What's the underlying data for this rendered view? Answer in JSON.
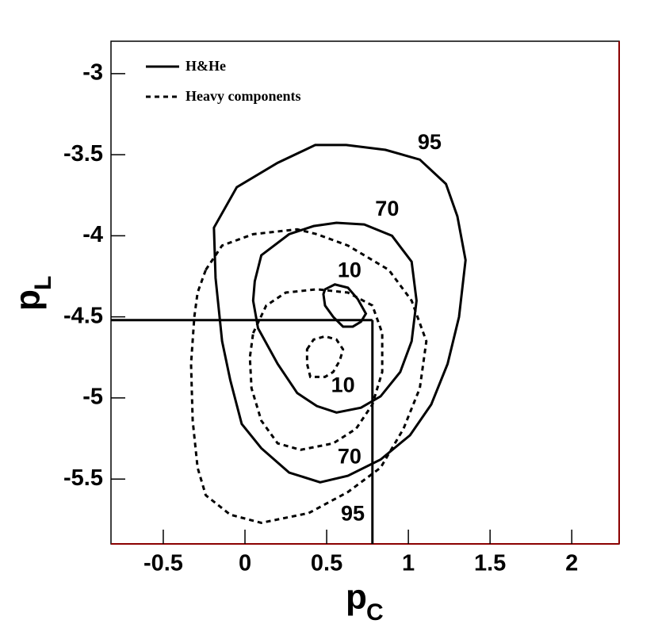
{
  "chart_data": {
    "type": "contour",
    "xlabel": {
      "text": "p",
      "sub": "C"
    },
    "ylabel": {
      "text": "p",
      "sub": "L"
    },
    "xlim": [
      -0.82,
      2.29
    ],
    "ylim": [
      -5.9,
      -2.8
    ],
    "xticks": [
      -0.5,
      0,
      0.5,
      1,
      1.5,
      2
    ],
    "yticks": [
      -3,
      -3.5,
      -4,
      -4.5,
      -5,
      -5.5
    ],
    "series": [
      {
        "name": "H&He",
        "dash": "solid",
        "color": "#000000",
        "lines": [
          {
            "x": [
              -0.19,
              -0.05,
              0.2,
              0.43,
              0.62,
              0.86,
              1.07,
              1.23,
              1.3,
              1.35,
              1.31,
              1.24,
              1.14,
              1.01,
              0.83,
              0.63,
              0.46,
              0.27,
              0.1,
              -0.02,
              -0.09,
              -0.14,
              -0.18
            ],
            "y": [
              -3.95,
              -3.7,
              -3.55,
              -3.44,
              -3.44,
              -3.47,
              -3.53,
              -3.68,
              -3.88,
              -4.15,
              -4.5,
              -4.79,
              -5.04,
              -5.23,
              -5.38,
              -5.48,
              -5.52,
              -5.46,
              -5.31,
              -5.16,
              -4.89,
              -4.65,
              -4.26
            ]
          },
          {
            "x": [
              0.06,
              0.1,
              0.27,
              0.42,
              0.56,
              0.73,
              0.9,
              1.02,
              1.05,
              1.02,
              0.95,
              0.83,
              0.71,
              0.56,
              0.44,
              0.32,
              0.2,
              0.08,
              0.05
            ],
            "y": [
              -4.28,
              -4.12,
              -3.99,
              -3.94,
              -3.92,
              -3.93,
              -4.0,
              -4.16,
              -4.4,
              -4.65,
              -4.84,
              -4.99,
              -5.06,
              -5.09,
              -5.05,
              -4.97,
              -4.79,
              -4.57,
              -4.4
            ]
          },
          {
            "x": [
              0.49,
              0.55,
              0.63,
              0.69,
              0.74,
              0.71,
              0.66,
              0.6,
              0.54,
              0.49,
              0.48
            ],
            "y": [
              -4.33,
              -4.3,
              -4.32,
              -4.39,
              -4.48,
              -4.53,
              -4.56,
              -4.56,
              -4.5,
              -4.43,
              -4.36
            ]
          }
        ]
      },
      {
        "name": "Heavy components",
        "dash": "dashed",
        "color": "#000000",
        "lines": [
          {
            "x": [
              -0.24,
              -0.14,
              0.05,
              0.32,
              0.44,
              0.63,
              0.88,
              1.02,
              1.11,
              1.07,
              0.97,
              0.83,
              0.63,
              0.39,
              0.1,
              -0.09,
              -0.24,
              -0.29,
              -0.32,
              -0.33,
              -0.31,
              -0.29
            ],
            "y": [
              -4.21,
              -4.06,
              -3.99,
              -3.96,
              -3.99,
              -4.06,
              -4.21,
              -4.4,
              -4.65,
              -4.94,
              -5.19,
              -5.43,
              -5.58,
              -5.71,
              -5.77,
              -5.72,
              -5.6,
              -5.43,
              -5.14,
              -4.79,
              -4.5,
              -4.35
            ]
          },
          {
            "x": [
              0.05,
              0.13,
              0.25,
              0.44,
              0.63,
              0.78,
              0.84,
              0.84,
              0.78,
              0.68,
              0.54,
              0.34,
              0.2,
              0.1,
              0.04,
              0.03
            ],
            "y": [
              -4.6,
              -4.43,
              -4.35,
              -4.33,
              -4.35,
              -4.43,
              -4.6,
              -4.84,
              -5.04,
              -5.19,
              -5.28,
              -5.32,
              -5.28,
              -5.14,
              -4.94,
              -4.75
            ]
          },
          {
            "x": [
              0.38,
              0.42,
              0.49,
              0.56,
              0.6,
              0.58,
              0.54,
              0.49,
              0.4,
              0.38
            ],
            "y": [
              -4.7,
              -4.64,
              -4.62,
              -4.64,
              -4.7,
              -4.77,
              -4.84,
              -4.87,
              -4.87,
              -4.79
            ]
          }
        ]
      }
    ],
    "annotations": [
      {
        "text": "95",
        "x": 1.13,
        "y": -3.43
      },
      {
        "text": "70",
        "x": 0.87,
        "y": -3.84
      },
      {
        "text": "10",
        "x": 0.64,
        "y": -4.22
      },
      {
        "text": "10",
        "x": 0.6,
        "y": -4.93
      },
      {
        "text": "70",
        "x": 0.64,
        "y": -5.37
      },
      {
        "text": "95",
        "x": 0.66,
        "y": -5.72
      }
    ],
    "marker": {
      "x": 0.78,
      "y": -4.52
    }
  }
}
